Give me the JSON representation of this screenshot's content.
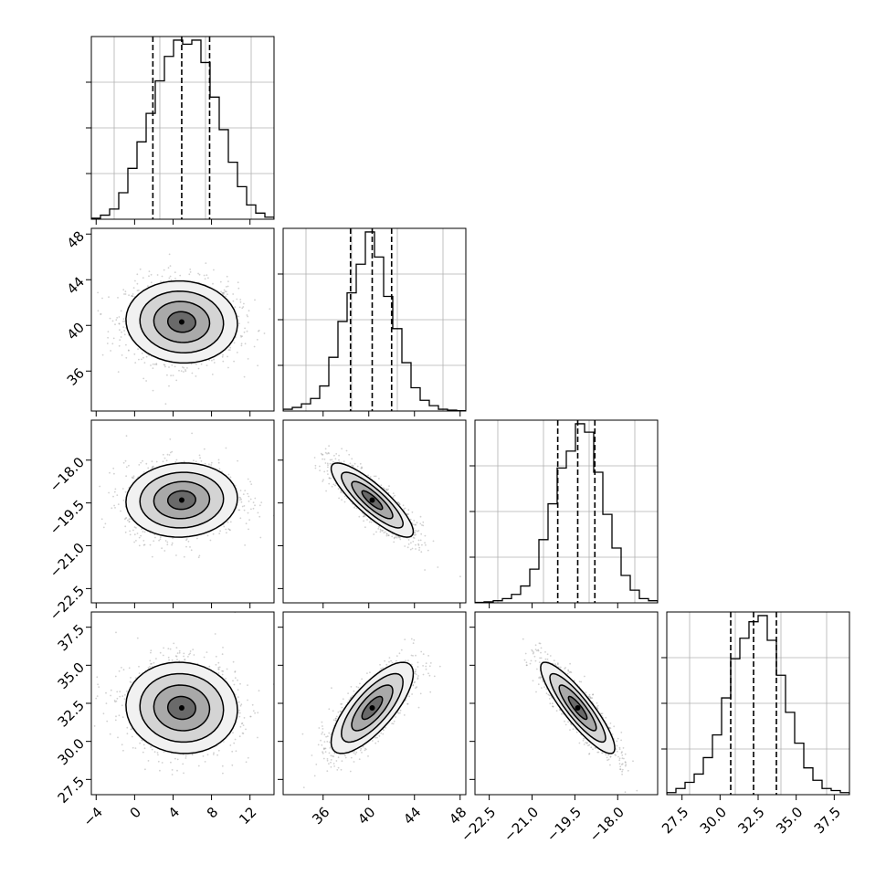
{
  "chart_data": {
    "type": "corner",
    "parameters": [
      {
        "range": [
          -4.5,
          14.5
        ],
        "ticks": [
          -4,
          0,
          4,
          8,
          12
        ],
        "tick_labels": [
          "−4",
          "0",
          "4",
          "8",
          "12"
        ],
        "quantiles": [
          1.9,
          4.9,
          7.8
        ],
        "mean": 4.9,
        "sd": 2.9
      },
      {
        "range": [
          32.5,
          48.5
        ],
        "ticks": [
          36,
          40,
          44,
          48
        ],
        "tick_labels": [
          "36",
          "40",
          "44",
          "48"
        ],
        "quantiles": [
          38.4,
          40.3,
          42.0
        ],
        "mean": 40.3,
        "sd": 1.8
      },
      {
        "range": [
          -23.0,
          -16.6
        ],
        "ticks": [
          -22.5,
          -21.0,
          -19.5,
          -18.0
        ],
        "tick_labels": [
          "−22.5",
          "−21.0",
          "−19.5",
          "−18.0"
        ],
        "quantiles": [
          -20.1,
          -19.4,
          -18.8
        ],
        "mean": -19.4,
        "sd": 0.65
      },
      {
        "range": [
          26.5,
          38.5
        ],
        "ticks": [
          27.5,
          30.0,
          32.5,
          35.0,
          37.5
        ],
        "tick_labels": [
          "27.5",
          "30.0",
          "32.5",
          "35.0",
          "37.5"
        ],
        "quantiles": [
          30.7,
          32.2,
          33.7
        ],
        "mean": 32.2,
        "sd": 1.5
      }
    ],
    "correlations": [
      [
        1.0,
        -0.05,
        0.05,
        -0.05
      ],
      [
        -0.05,
        1.0,
        -0.85,
        0.75
      ],
      [
        0.05,
        -0.85,
        1.0,
        -0.88
      ],
      [
        -0.05,
        0.75,
        -0.88,
        1.0
      ]
    ],
    "histograms": [
      [
        0.005,
        0.02,
        0.05,
        0.13,
        0.25,
        0.38,
        0.52,
        0.68,
        0.8,
        0.88,
        0.86,
        0.88,
        0.77,
        0.6,
        0.44,
        0.28,
        0.16,
        0.07,
        0.03,
        0.01
      ],
      [
        0.01,
        0.02,
        0.04,
        0.07,
        0.14,
        0.3,
        0.5,
        0.66,
        0.82,
        1.0,
        0.86,
        0.64,
        0.46,
        0.27,
        0.13,
        0.06,
        0.03,
        0.01,
        0.005,
        0.002
      ],
      [
        0.002,
        0.005,
        0.01,
        0.02,
        0.04,
        0.08,
        0.16,
        0.3,
        0.47,
        0.64,
        0.72,
        0.85,
        0.81,
        0.62,
        0.42,
        0.26,
        0.13,
        0.06,
        0.02,
        0.01
      ],
      [
        0.01,
        0.03,
        0.06,
        0.1,
        0.18,
        0.29,
        0.47,
        0.66,
        0.76,
        0.84,
        0.87,
        0.75,
        0.58,
        0.4,
        0.25,
        0.13,
        0.07,
        0.03,
        0.02,
        0.01
      ]
    ],
    "histogram_bins": 20,
    "contour_levels_sigma": [
      0.5,
      1.0,
      1.5,
      2.0
    ],
    "scatter_samples": 1500,
    "grid": true,
    "quantile_lines": "dashed",
    "title": "",
    "axis_labels": []
  }
}
